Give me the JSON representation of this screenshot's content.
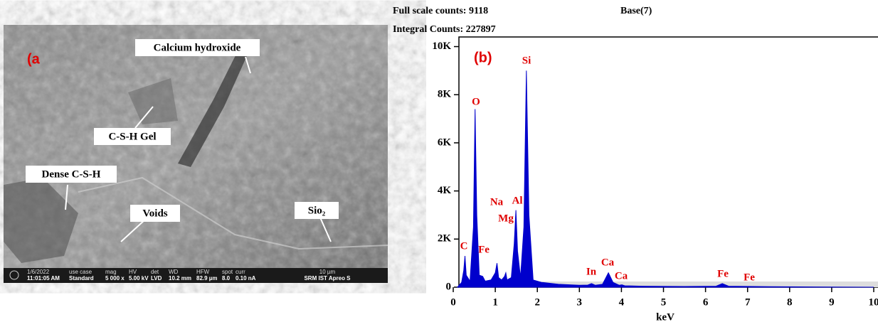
{
  "panel_a": {
    "label": "(a",
    "annotations": [
      "Calcium hydroxide",
      "C-S-H Gel",
      "Dense C-S-H",
      "Voids",
      "Sio₂"
    ],
    "info_bar": [
      [
        "1/6/2022",
        "11:01:05 AM"
      ],
      [
        "use case",
        "Standard"
      ],
      [
        "mag",
        "5 000 x"
      ],
      [
        "HV",
        "5.00 kV"
      ],
      [
        "det",
        "LVD"
      ],
      [
        "WD",
        "10.2 mm"
      ],
      [
        "HFW",
        "82.9 µm"
      ],
      [
        "spot",
        "8.0"
      ],
      [
        "curr",
        "0.10 nA"
      ],
      [
        "10 µm",
        "SRM IST Apreo S"
      ]
    ]
  },
  "chart_data": {
    "type": "area",
    "label": "(b)",
    "header": [
      "Full scale counts: 9118",
      "Base(7)",
      "Integral Counts: 227897"
    ],
    "x_label": "keV",
    "color": "#0000cc",
    "annotation_color": "#e00000",
    "x": [
      0.1,
      0.2,
      0.25,
      0.28,
      0.31,
      0.4,
      0.48,
      0.52,
      0.56,
      0.62,
      0.7,
      0.76,
      0.9,
      1.0,
      1.04,
      1.08,
      1.15,
      1.22,
      1.25,
      1.28,
      1.38,
      1.45,
      1.49,
      1.53,
      1.6,
      1.68,
      1.74,
      1.8,
      1.9,
      2.1,
      2.5,
      3.0,
      3.2,
      3.29,
      3.38,
      3.55,
      3.69,
      3.8,
      3.95,
      4.01,
      4.08,
      4.5,
      5.5,
      6.25,
      6.4,
      6.55,
      7.5,
      9,
      10
    ],
    "values": [
      0,
      200,
      700,
      1300,
      500,
      250,
      2500,
      7400,
      3000,
      500,
      450,
      250,
      300,
      600,
      1000,
      400,
      300,
      450,
      600,
      300,
      400,
      1800,
      3200,
      1500,
      400,
      2500,
      9000,
      3000,
      300,
      200,
      120,
      80,
      90,
      150,
      80,
      120,
      600,
      200,
      80,
      100,
      60,
      40,
      30,
      40,
      150,
      40,
      20,
      10,
      0
    ],
    "annotations": [
      "C",
      "O",
      "Fe",
      "Na",
      "Mg",
      "Al",
      "Si",
      "In",
      "Ca",
      "Ca",
      "Fe",
      "Fe"
    ],
    "xlim": [
      0,
      10
    ],
    "xticks": [
      0,
      1,
      2,
      3,
      4,
      5,
      6,
      7,
      8,
      9,
      10
    ],
    "ylim": [
      0,
      10400
    ],
    "yticks": [
      {
        "value": 0,
        "label": "0"
      },
      {
        "value": 2000,
        "label": "2K"
      },
      {
        "value": 4000,
        "label": "4K"
      },
      {
        "value": 6000,
        "label": "6K"
      },
      {
        "value": 8000,
        "label": "8K"
      },
      {
        "value": 10000,
        "label": "10K"
      }
    ]
  }
}
